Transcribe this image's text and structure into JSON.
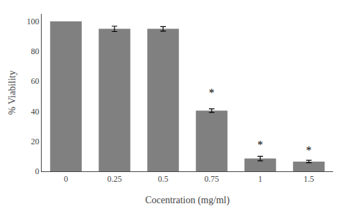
{
  "chart_data": {
    "type": "bar",
    "categories": [
      "0",
      "0.25",
      "0.5",
      "0.75",
      "1",
      "1.5"
    ],
    "values": [
      100,
      95,
      95,
      40.5,
      8.5,
      6.5
    ],
    "errors": [
      0,
      1.8,
      1.5,
      1.2,
      1.5,
      0.8
    ],
    "color": "#808080",
    "xlabel": "Cocentration (mg/ml)",
    "ylabel": "% Viability",
    "ylim": [
      0,
      105
    ],
    "yticks": [
      0,
      20,
      40,
      60,
      80,
      100
    ],
    "grid": false,
    "annotations": [
      {
        "text": "*",
        "x": "0.75",
        "y": 47.7
      },
      {
        "text": "*",
        "x": "1",
        "y": 13
      },
      {
        "text": "*",
        "x": "1.5",
        "y": 9.3
      }
    ]
  }
}
